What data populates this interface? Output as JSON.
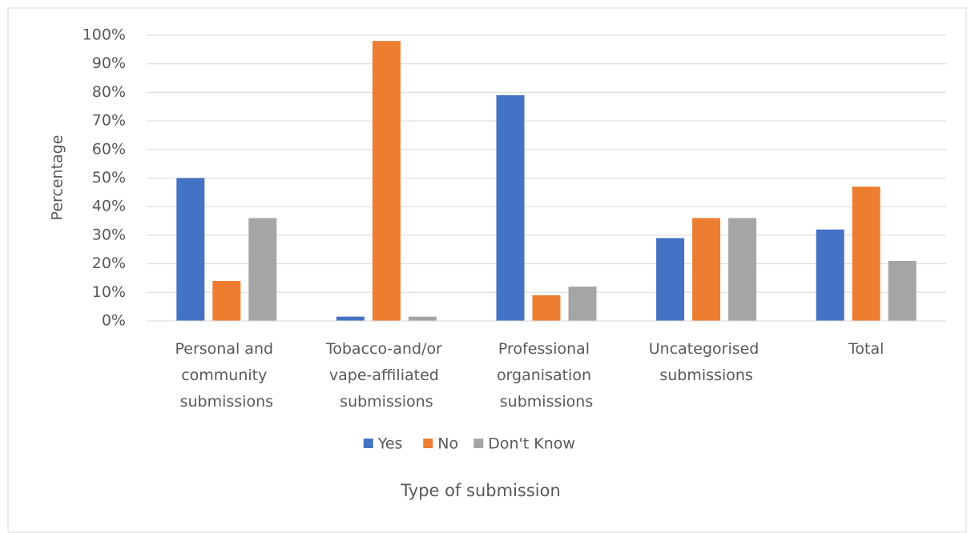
{
  "chart_data": {
    "type": "bar",
    "categories": [
      "Personal and community submissions",
      "Tobacco-and/or vape-affiliated submissions",
      "Professional organisation submissions",
      "Uncategorised submissions",
      "Total"
    ],
    "series": [
      {
        "name": "Yes",
        "color": "#4472c4",
        "values": [
          50,
          1.5,
          79,
          29,
          32
        ]
      },
      {
        "name": "No",
        "color": "#ed7d31",
        "values": [
          14,
          98,
          9,
          36,
          47
        ]
      },
      {
        "name": "Don't Know",
        "color": "#a5a5a5",
        "values": [
          36,
          1.5,
          12,
          36,
          21
        ]
      }
    ],
    "ylim": [
      0,
      100
    ],
    "yticks": [
      {
        "value": 0,
        "label": "0%"
      },
      {
        "value": 10,
        "label": "10%"
      },
      {
        "value": 20,
        "label": "20%"
      },
      {
        "value": 30,
        "label": "30%"
      },
      {
        "value": 40,
        "label": "40%"
      },
      {
        "value": 50,
        "label": "50%"
      },
      {
        "value": 60,
        "label": "60%"
      },
      {
        "value": 70,
        "label": "70%"
      },
      {
        "value": 80,
        "label": "80%"
      },
      {
        "value": 90,
        "label": "90%"
      },
      {
        "value": 100,
        "label": "100%"
      }
    ],
    "x_label": "Type of submission",
    "y_label": "Percentage",
    "grid": true,
    "legend": "bottom"
  }
}
